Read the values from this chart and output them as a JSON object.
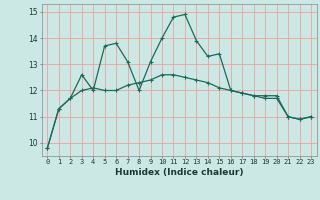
{
  "xlabel": "Humidex (Indice chaleur)",
  "ylabel": "",
  "bg_color": "#cce8e4",
  "grid_color": "#f0a0a0",
  "line_color": "#1a6b5a",
  "xlim": [
    -0.5,
    23.5
  ],
  "ylim": [
    9.5,
    15.3
  ],
  "yticks": [
    10,
    11,
    12,
    13,
    14,
    15
  ],
  "xticks": [
    0,
    1,
    2,
    3,
    4,
    5,
    6,
    7,
    8,
    9,
    10,
    11,
    12,
    13,
    14,
    15,
    16,
    17,
    18,
    19,
    20,
    21,
    22,
    23
  ],
  "series1_x": [
    0,
    1,
    2,
    3,
    4,
    5,
    6,
    7,
    8,
    9,
    10,
    11,
    12,
    13,
    14,
    15,
    16,
    17,
    18,
    19,
    20,
    21,
    22,
    23
  ],
  "series1_y": [
    9.8,
    11.3,
    11.7,
    12.6,
    12.0,
    13.7,
    13.8,
    13.1,
    12.0,
    13.1,
    14.0,
    14.8,
    14.9,
    13.9,
    13.3,
    13.4,
    12.0,
    11.9,
    11.8,
    11.8,
    11.8,
    11.0,
    10.9,
    11.0
  ],
  "series2_x": [
    0,
    1,
    2,
    3,
    4,
    5,
    6,
    7,
    8,
    9,
    10,
    11,
    12,
    13,
    14,
    15,
    16,
    17,
    18,
    19,
    20,
    21,
    22,
    23
  ],
  "series2_y": [
    9.8,
    11.3,
    11.7,
    12.0,
    12.1,
    12.0,
    12.0,
    12.2,
    12.3,
    12.4,
    12.6,
    12.6,
    12.5,
    12.4,
    12.3,
    12.1,
    12.0,
    11.9,
    11.8,
    11.7,
    11.7,
    11.0,
    10.9,
    11.0
  ],
  "tick_fontsize": 5.0,
  "xlabel_fontsize": 6.5
}
